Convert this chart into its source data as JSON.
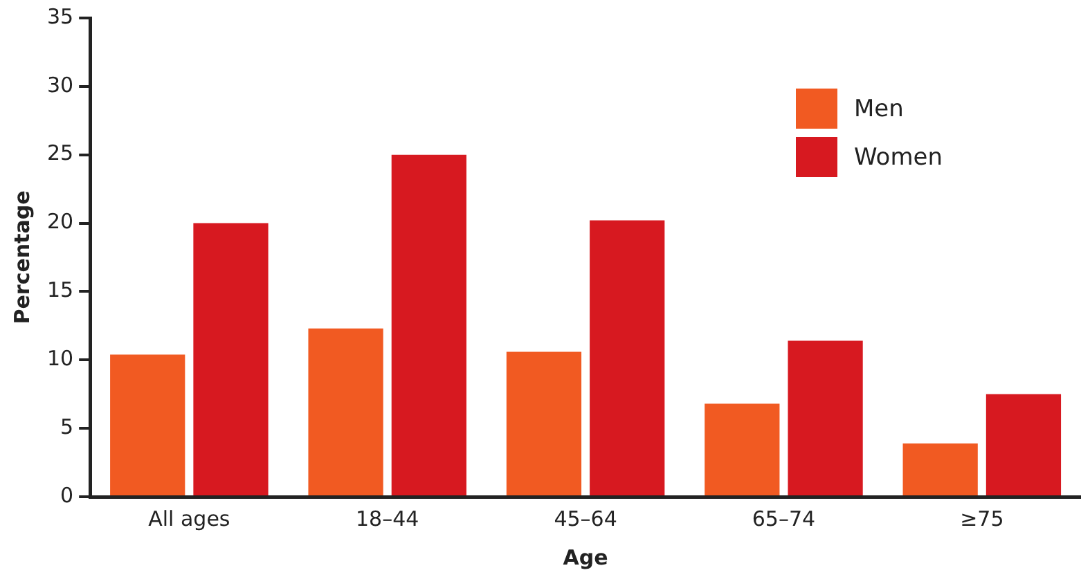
{
  "chart_data": {
    "type": "bar",
    "xlabel": "Age",
    "ylabel": "Percentage",
    "categories": [
      "All ages",
      "18–44",
      "45–64",
      "65–74",
      "≥75"
    ],
    "series": [
      {
        "name": "Men",
        "color": "#f15a22",
        "values": [
          10.4,
          12.3,
          10.6,
          6.8,
          3.9
        ]
      },
      {
        "name": "Women",
        "color": "#d71920",
        "values": [
          20.0,
          25.0,
          20.2,
          11.4,
          7.5
        ]
      }
    ],
    "ylim": [
      0,
      35
    ],
    "yticks": [
      0,
      5,
      10,
      15,
      20,
      25,
      30,
      35
    ],
    "grid": false,
    "legend": "top right"
  }
}
